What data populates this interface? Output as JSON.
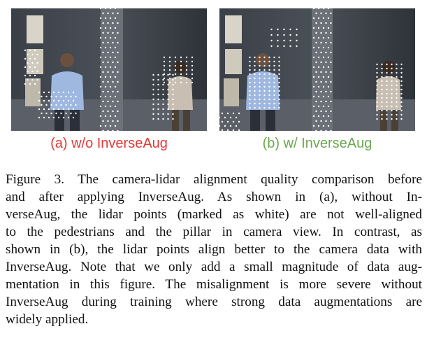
{
  "figure": {
    "panel_a": {
      "caption": "(a) w/o InverseAug",
      "color": "#e53935"
    },
    "panel_b": {
      "caption": "(b) w/ InverseAug",
      "color": "#6aa84f"
    },
    "lidar_point_color": "#ffffff",
    "caption_lines": [
      "Figure 3. The camera-lidar alignment quality comparison before",
      "and after applying InverseAug. As shown in (a), without In-",
      "verseAug, the lidar points (marked as white) are not well-aligned",
      "to the pedestrians and the pillar in camera view. In contrast, as",
      "shown in (b), the lidar points align better to the camera data with",
      "InverseAug. Note that we only add a small magnitude of data aug-",
      "mentation in this figure. The misalignment is more severe without",
      "InverseAug during training where strong data augmentations are",
      "widely applied."
    ]
  }
}
